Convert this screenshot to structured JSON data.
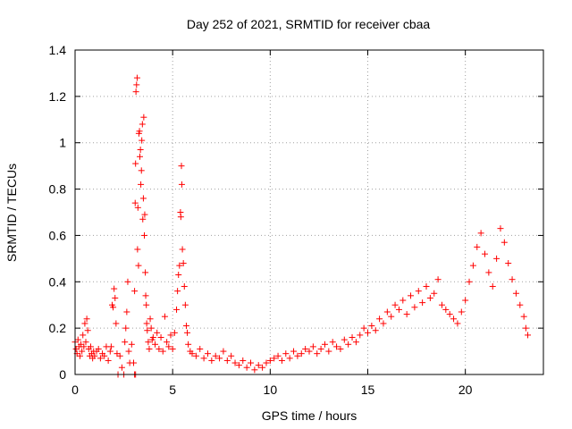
{
  "chart_data": {
    "type": "scatter",
    "title": "Day 252 of 2021, SRMTID for receiver cbaa",
    "xlabel": "GPS time / hours",
    "ylabel": "SRMTID / TECUs",
    "xlim": [
      0,
      24
    ],
    "ylim": [
      0,
      1.4
    ],
    "xticks": [
      0,
      5,
      10,
      15,
      20
    ],
    "yticks": [
      0,
      0.2,
      0.4,
      0.6,
      0.8,
      1,
      1.2,
      1.4
    ],
    "ytick_labels": [
      "0",
      "0.2",
      "0.4",
      "0.6",
      "0.8",
      "1",
      "1.2",
      "1.4"
    ],
    "grid": true,
    "marker": "+",
    "series": [
      {
        "name": "SRMTID",
        "color": "#ff0000",
        "points": [
          [
            0.0,
            0.14
          ],
          [
            0.05,
            0.11
          ],
          [
            0.1,
            0.09
          ],
          [
            0.15,
            0.15
          ],
          [
            0.2,
            0.12
          ],
          [
            0.25,
            0.08
          ],
          [
            0.3,
            0.13
          ],
          [
            0.35,
            0.1
          ],
          [
            0.4,
            0.17
          ],
          [
            0.45,
            0.12
          ],
          [
            0.5,
            0.22
          ],
          [
            0.55,
            0.14
          ],
          [
            0.6,
            0.24
          ],
          [
            0.65,
            0.19
          ],
          [
            0.7,
            0.11
          ],
          [
            0.75,
            0.08
          ],
          [
            0.8,
            0.12
          ],
          [
            0.85,
            0.09
          ],
          [
            0.9,
            0.07
          ],
          [
            0.95,
            0.1
          ],
          [
            1.0,
            0.08
          ],
          [
            1.1,
            0.1
          ],
          [
            1.2,
            0.11
          ],
          [
            1.3,
            0.07
          ],
          [
            1.4,
            0.09
          ],
          [
            1.5,
            0.08
          ],
          [
            1.6,
            0.12
          ],
          [
            1.7,
            0.06
          ],
          [
            1.8,
            0.1
          ],
          [
            1.85,
            0.12
          ],
          [
            1.9,
            0.3
          ],
          [
            1.95,
            0.29
          ],
          [
            2.0,
            0.37
          ],
          [
            2.05,
            0.33
          ],
          [
            2.1,
            0.22
          ],
          [
            2.15,
            0.09
          ],
          [
            2.2,
            0.0
          ],
          [
            2.3,
            0.08
          ],
          [
            2.4,
            0.03
          ],
          [
            2.5,
            0.0
          ],
          [
            2.55,
            0.14
          ],
          [
            2.6,
            0.2
          ],
          [
            2.65,
            0.27
          ],
          [
            2.7,
            0.4
          ],
          [
            2.75,
            0.1
          ],
          [
            2.8,
            0.05
          ],
          [
            2.9,
            0.13
          ],
          [
            3.0,
            0.05
          ],
          [
            3.05,
            0.0
          ],
          [
            3.1,
            0.0
          ],
          [
            3.05,
            0.36
          ],
          [
            3.08,
            0.74
          ],
          [
            3.1,
            0.91
          ],
          [
            3.12,
            1.22
          ],
          [
            3.15,
            1.25
          ],
          [
            3.18,
            1.28
          ],
          [
            3.2,
            0.54
          ],
          [
            3.22,
            0.72
          ],
          [
            3.25,
            0.47
          ],
          [
            3.27,
            1.04
          ],
          [
            3.3,
            1.05
          ],
          [
            3.32,
            0.94
          ],
          [
            3.35,
            0.97
          ],
          [
            3.37,
            0.82
          ],
          [
            3.4,
            0.88
          ],
          [
            3.42,
            1.01
          ],
          [
            3.45,
            1.08
          ],
          [
            3.47,
            0.67
          ],
          [
            3.5,
            0.76
          ],
          [
            3.52,
            1.11
          ],
          [
            3.55,
            0.6
          ],
          [
            3.57,
            0.69
          ],
          [
            3.6,
            0.44
          ],
          [
            3.62,
            0.34
          ],
          [
            3.65,
            0.3
          ],
          [
            3.67,
            0.22
          ],
          [
            3.7,
            0.19
          ],
          [
            3.75,
            0.14
          ],
          [
            3.8,
            0.11
          ],
          [
            3.85,
            0.24
          ],
          [
            3.9,
            0.2
          ],
          [
            3.95,
            0.15
          ],
          [
            4.0,
            0.16
          ],
          [
            4.1,
            0.13
          ],
          [
            4.2,
            0.18
          ],
          [
            4.3,
            0.11
          ],
          [
            4.4,
            0.16
          ],
          [
            4.5,
            0.1
          ],
          [
            4.6,
            0.25
          ],
          [
            4.7,
            0.14
          ],
          [
            4.8,
            0.12
          ],
          [
            4.9,
            0.17
          ],
          [
            5.0,
            0.11
          ],
          [
            5.1,
            0.18
          ],
          [
            5.2,
            0.28
          ],
          [
            5.25,
            0.36
          ],
          [
            5.3,
            0.43
          ],
          [
            5.35,
            0.47
          ],
          [
            5.4,
            0.7
          ],
          [
            5.42,
            0.68
          ],
          [
            5.45,
            0.9
          ],
          [
            5.47,
            0.82
          ],
          [
            5.5,
            0.54
          ],
          [
            5.55,
            0.48
          ],
          [
            5.6,
            0.38
          ],
          [
            5.65,
            0.3
          ],
          [
            5.7,
            0.21
          ],
          [
            5.75,
            0.18
          ],
          [
            5.8,
            0.13
          ],
          [
            5.9,
            0.1
          ],
          [
            6.0,
            0.09
          ],
          [
            6.2,
            0.08
          ],
          [
            6.4,
            0.11
          ],
          [
            6.6,
            0.07
          ],
          [
            6.8,
            0.09
          ],
          [
            7.0,
            0.06
          ],
          [
            7.2,
            0.08
          ],
          [
            7.4,
            0.07
          ],
          [
            7.6,
            0.1
          ],
          [
            7.8,
            0.06
          ],
          [
            8.0,
            0.08
          ],
          [
            8.2,
            0.05
          ],
          [
            8.4,
            0.04
          ],
          [
            8.6,
            0.06
          ],
          [
            8.8,
            0.03
          ],
          [
            9.0,
            0.05
          ],
          [
            9.2,
            0.02
          ],
          [
            9.4,
            0.04
          ],
          [
            9.6,
            0.03
          ],
          [
            9.8,
            0.05
          ],
          [
            10.0,
            0.06
          ],
          [
            10.2,
            0.07
          ],
          [
            10.4,
            0.08
          ],
          [
            10.6,
            0.06
          ],
          [
            10.8,
            0.09
          ],
          [
            11.0,
            0.07
          ],
          [
            11.2,
            0.1
          ],
          [
            11.4,
            0.08
          ],
          [
            11.6,
            0.09
          ],
          [
            11.8,
            0.11
          ],
          [
            12.0,
            0.1
          ],
          [
            12.2,
            0.12
          ],
          [
            12.4,
            0.09
          ],
          [
            12.6,
            0.11
          ],
          [
            12.8,
            0.13
          ],
          [
            13.0,
            0.1
          ],
          [
            13.2,
            0.14
          ],
          [
            13.4,
            0.12
          ],
          [
            13.6,
            0.11
          ],
          [
            13.8,
            0.15
          ],
          [
            14.0,
            0.13
          ],
          [
            14.2,
            0.16
          ],
          [
            14.4,
            0.14
          ],
          [
            14.6,
            0.17
          ],
          [
            14.8,
            0.2
          ],
          [
            15.0,
            0.18
          ],
          [
            15.2,
            0.21
          ],
          [
            15.4,
            0.19
          ],
          [
            15.6,
            0.24
          ],
          [
            15.8,
            0.22
          ],
          [
            16.0,
            0.27
          ],
          [
            16.2,
            0.25
          ],
          [
            16.4,
            0.3
          ],
          [
            16.6,
            0.28
          ],
          [
            16.8,
            0.32
          ],
          [
            17.0,
            0.26
          ],
          [
            17.2,
            0.34
          ],
          [
            17.4,
            0.29
          ],
          [
            17.6,
            0.36
          ],
          [
            17.8,
            0.31
          ],
          [
            18.0,
            0.38
          ],
          [
            18.2,
            0.33
          ],
          [
            18.4,
            0.35
          ],
          [
            18.6,
            0.41
          ],
          [
            18.8,
            0.3
          ],
          [
            19.0,
            0.28
          ],
          [
            19.2,
            0.26
          ],
          [
            19.4,
            0.24
          ],
          [
            19.6,
            0.22
          ],
          [
            19.8,
            0.27
          ],
          [
            20.0,
            0.32
          ],
          [
            20.2,
            0.4
          ],
          [
            20.4,
            0.47
          ],
          [
            20.6,
            0.55
          ],
          [
            20.8,
            0.61
          ],
          [
            21.0,
            0.52
          ],
          [
            21.2,
            0.44
          ],
          [
            21.4,
            0.38
          ],
          [
            21.6,
            0.5
          ],
          [
            21.8,
            0.63
          ],
          [
            22.0,
            0.57
          ],
          [
            22.2,
            0.48
          ],
          [
            22.4,
            0.41
          ],
          [
            22.6,
            0.35
          ],
          [
            22.8,
            0.3
          ],
          [
            23.0,
            0.25
          ],
          [
            23.1,
            0.2
          ],
          [
            23.2,
            0.17
          ]
        ]
      }
    ]
  }
}
